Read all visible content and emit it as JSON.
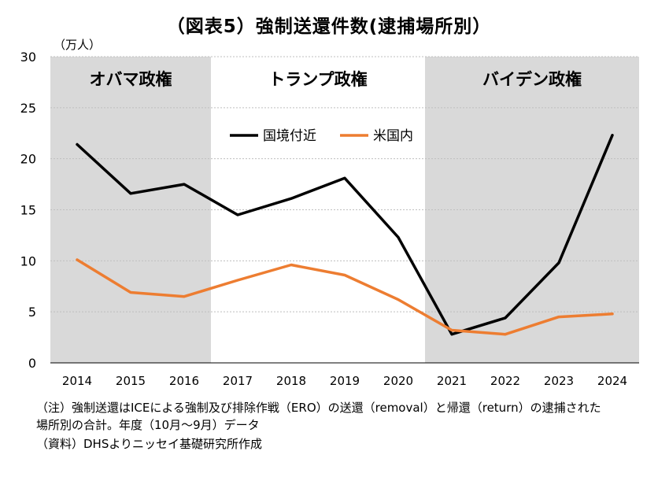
{
  "chart_data": {
    "type": "line",
    "title": "（図表5）強制送還件数(逮捕場所別）",
    "ylabel": "（万人）",
    "xlabel": "",
    "ylim": [
      0,
      30
    ],
    "yticks": [
      0,
      5,
      10,
      15,
      20,
      25,
      30
    ],
    "categories": [
      "2014",
      "2015",
      "2016",
      "2017",
      "2018",
      "2019",
      "2020",
      "2021",
      "2022",
      "2023",
      "2024"
    ],
    "series": [
      {
        "name": "国境付近",
        "color": "#000000",
        "values": [
          21.4,
          16.6,
          17.5,
          14.5,
          16.1,
          18.1,
          12.3,
          2.8,
          4.4,
          9.8,
          22.3
        ]
      },
      {
        "name": "米国内",
        "color": "#ED7D31",
        "values": [
          10.1,
          6.9,
          6.5,
          8.1,
          9.6,
          8.6,
          6.2,
          3.2,
          2.8,
          4.5,
          4.8
        ]
      }
    ],
    "regions": [
      {
        "label": "オバマ政権",
        "from": "2014",
        "to": "2016",
        "shaded": true
      },
      {
        "label": "トランプ政権",
        "from": "2017",
        "to": "2020",
        "shaded": false
      },
      {
        "label": "バイデン政権",
        "from": "2021",
        "to": "2024",
        "shaded": true
      }
    ],
    "legend": "top-center",
    "grid": true
  },
  "notes": [
    "（注）強制送還はICEによる強制及び排除作戦（ERO）の送還（removal）と帰還（return）の逮捕された",
    "場所別の合計。年度（10月～9月）データ",
    "（資料）DHSよりニッセイ基礎研究所作成"
  ],
  "colors": {
    "shading": "#D9D9D9",
    "grid": "#BFBFBF"
  }
}
